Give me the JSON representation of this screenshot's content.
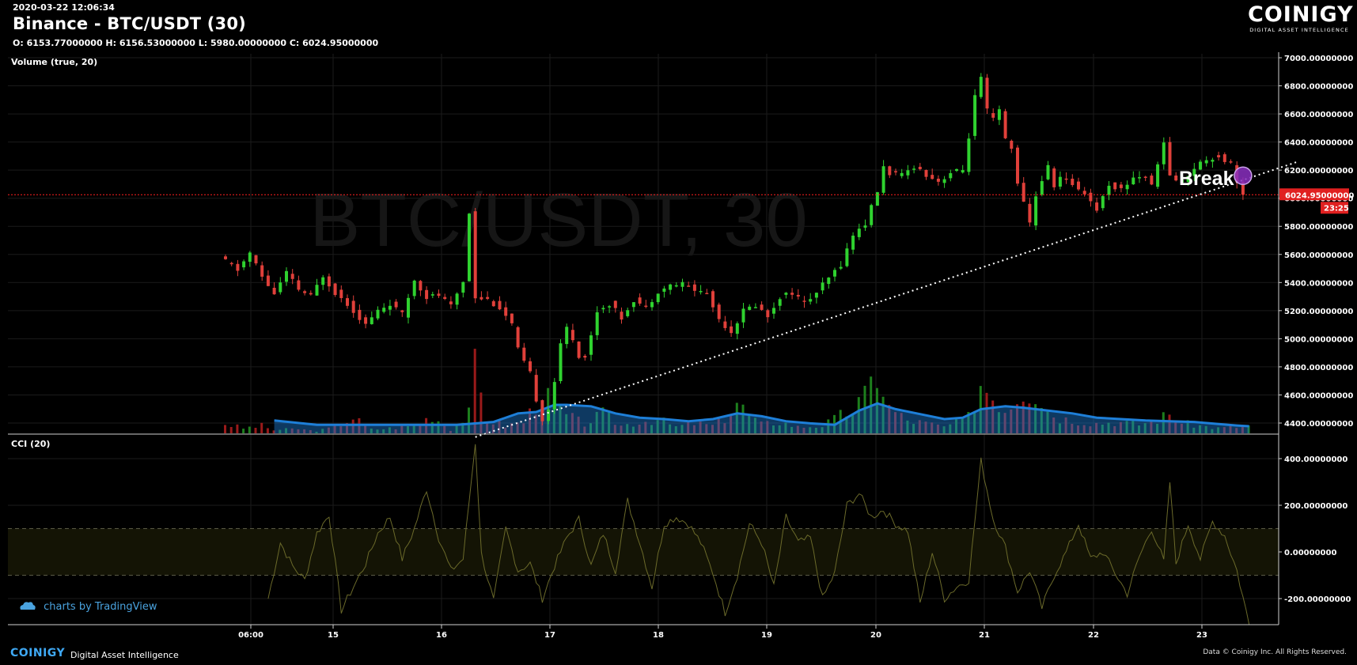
{
  "header": {
    "timestamp": "2020-03-22 12:06:34",
    "title": "Binance - BTC/USDT (30)",
    "ohlc": "O: 6153.77000000 H: 6156.53000000 L: 5980.00000000 C: 6024.95000000"
  },
  "brand": {
    "name": "COINIGY",
    "tagline": "DIGITAL ASSET INTELLIGENCE",
    "footer_name": "COINIGY",
    "footer_tagline": "Digital Asset Intelligence",
    "copyright": "Data © Coinigy Inc.  All Rights Reserved.",
    "tradingview": "charts by TradingView"
  },
  "colors": {
    "up": "#2fd22f",
    "down": "#e0403a",
    "volume_ma": "#1e7fd8",
    "cci_line": "#6b6a2a",
    "price_line": "#ff2020",
    "accent": "#3fa9f5"
  },
  "chart_data": [
    {
      "type": "candlestick",
      "title": "Binance - BTC/USDT (30)",
      "watermark": "BTC/USDT, 30",
      "x_tick_labels": [
        "06:00",
        "15",
        "16",
        "17",
        "18",
        "19",
        "20",
        "21",
        "22",
        "23"
      ],
      "y_tick_labels": [
        "7000.00000000",
        "6800.00000000",
        "6600.00000000",
        "6400.00000000",
        "6200.00000000",
        "6000.00000000",
        "5800.00000000",
        "5600.00000000",
        "5400.00000000",
        "5200.00000000",
        "5000.00000000",
        "4800.00000000",
        "4600.00000000",
        "4400.00000000"
      ],
      "ylim": [
        4300,
        7050
      ],
      "ohlc": {
        "open": 6153.77,
        "high": 6156.53,
        "low": 5980.0,
        "close": 6024.95
      },
      "current_price_label": "6024.95000000",
      "countdown_label": "23:25",
      "price_path": [
        [
          0,
          5580
        ],
        [
          3,
          5490
        ],
        [
          5,
          5610
        ],
        [
          7,
          5440
        ],
        [
          9,
          5320
        ],
        [
          11,
          5470
        ],
        [
          13,
          5350
        ],
        [
          15,
          5300
        ],
        [
          17,
          5450
        ],
        [
          19,
          5330
        ],
        [
          21,
          5250
        ],
        [
          24,
          5100
        ],
        [
          26,
          5200
        ],
        [
          28,
          5250
        ],
        [
          30,
          5170
        ],
        [
          32,
          5420
        ],
        [
          34,
          5300
        ],
        [
          36,
          5310
        ],
        [
          38,
          5230
        ],
        [
          40,
          5410
        ],
        [
          41,
          5900
        ],
        [
          42,
          5300
        ],
        [
          44,
          5280
        ],
        [
          46,
          5220
        ],
        [
          48,
          5100
        ],
        [
          49,
          4920
        ],
        [
          50,
          4830
        ],
        [
          51,
          4750
        ],
        [
          52,
          4570
        ],
        [
          53,
          4430
        ],
        [
          54,
          4500
        ],
        [
          55,
          4700
        ],
        [
          56,
          4950
        ],
        [
          57,
          5080
        ],
        [
          58,
          5000
        ],
        [
          59,
          4880
        ],
        [
          60,
          4870
        ],
        [
          61,
          5020
        ],
        [
          62,
          5200
        ],
        [
          64,
          5250
        ],
        [
          66,
          5150
        ],
        [
          68,
          5280
        ],
        [
          70,
          5220
        ],
        [
          72,
          5340
        ],
        [
          74,
          5380
        ],
        [
          76,
          5390
        ],
        [
          78,
          5350
        ],
        [
          80,
          5320
        ],
        [
          82,
          5140
        ],
        [
          84,
          5050
        ],
        [
          86,
          5200
        ],
        [
          88,
          5240
        ],
        [
          90,
          5160
        ],
        [
          92,
          5300
        ],
        [
          94,
          5330
        ],
        [
          96,
          5250
        ],
        [
          98,
          5330
        ],
        [
          100,
          5430
        ],
        [
          102,
          5530
        ],
        [
          104,
          5740
        ],
        [
          106,
          5820
        ],
        [
          108,
          6050
        ],
        [
          109,
          6220
        ],
        [
          110,
          6180
        ],
        [
          112,
          6160
        ],
        [
          114,
          6230
        ],
        [
          116,
          6170
        ],
        [
          118,
          6120
        ],
        [
          120,
          6180
        ],
        [
          122,
          6200
        ],
        [
          123,
          6440
        ],
        [
          124,
          6720
        ],
        [
          125,
          6850
        ],
        [
          126,
          6620
        ],
        [
          127,
          6560
        ],
        [
          128,
          6620
        ],
        [
          129,
          6420
        ],
        [
          130,
          6350
        ],
        [
          131,
          6120
        ],
        [
          132,
          5960
        ],
        [
          133,
          5820
        ],
        [
          134,
          6020
        ],
        [
          135,
          6130
        ],
        [
          136,
          6220
        ],
        [
          137,
          6090
        ],
        [
          138,
          6150
        ],
        [
          140,
          6100
        ],
        [
          142,
          6040
        ],
        [
          144,
          5920
        ],
        [
          146,
          6100
        ],
        [
          148,
          6060
        ],
        [
          150,
          6150
        ],
        [
          152,
          6160
        ],
        [
          153,
          6080
        ],
        [
          154,
          6260
        ],
        [
          155,
          6380
        ],
        [
          156,
          6170
        ],
        [
          157,
          6130
        ],
        [
          158,
          6120
        ],
        [
          160,
          6220
        ],
        [
          162,
          6280
        ],
        [
          164,
          6300
        ],
        [
          165,
          6270
        ],
        [
          166,
          6250
        ],
        [
          167,
          6130
        ],
        [
          168,
          6020
        ]
      ],
      "volume_path": [
        [
          0,
          15
        ],
        [
          3,
          8
        ],
        [
          6,
          12
        ],
        [
          8,
          5
        ],
        [
          12,
          7
        ],
        [
          15,
          3
        ],
        [
          18,
          10
        ],
        [
          21,
          25
        ],
        [
          24,
          6
        ],
        [
          27,
          8
        ],
        [
          31,
          12
        ],
        [
          34,
          28
        ],
        [
          37,
          6
        ],
        [
          40,
          30
        ],
        [
          41,
          100
        ],
        [
          43,
          22
        ],
        [
          46,
          12
        ],
        [
          49,
          18
        ],
        [
          52,
          60
        ],
        [
          54,
          45
        ],
        [
          56,
          28
        ],
        [
          59,
          15
        ],
        [
          62,
          30
        ],
        [
          65,
          12
        ],
        [
          68,
          18
        ],
        [
          71,
          22
        ],
        [
          74,
          10
        ],
        [
          77,
          16
        ],
        [
          80,
          12
        ],
        [
          82,
          24
        ],
        [
          84,
          50
        ],
        [
          86,
          28
        ],
        [
          88,
          14
        ],
        [
          91,
          18
        ],
        [
          94,
          10
        ],
        [
          98,
          12
        ],
        [
          100,
          22
        ],
        [
          103,
          38
        ],
        [
          105,
          56
        ],
        [
          107,
          98
        ],
        [
          109,
          40
        ],
        [
          112,
          20
        ],
        [
          115,
          16
        ],
        [
          118,
          10
        ],
        [
          122,
          25
        ],
        [
          124,
          80
        ],
        [
          126,
          60
        ],
        [
          128,
          38
        ],
        [
          131,
          72
        ],
        [
          133,
          66
        ],
        [
          135,
          36
        ],
        [
          137,
          24
        ],
        [
          140,
          20
        ],
        [
          143,
          16
        ],
        [
          146,
          18
        ],
        [
          150,
          14
        ],
        [
          153,
          22
        ],
        [
          155,
          30
        ],
        [
          157,
          16
        ],
        [
          160,
          12
        ],
        [
          163,
          8
        ],
        [
          166,
          10
        ],
        [
          168,
          12
        ]
      ],
      "volume_ma_path": [
        [
          8,
          18
        ],
        [
          15,
          12
        ],
        [
          22,
          12
        ],
        [
          30,
          12
        ],
        [
          38,
          12
        ],
        [
          44,
          16
        ],
        [
          48,
          28
        ],
        [
          51,
          30
        ],
        [
          54,
          40
        ],
        [
          56,
          40
        ],
        [
          60,
          38
        ],
        [
          64,
          28
        ],
        [
          68,
          22
        ],
        [
          72,
          20
        ],
        [
          76,
          17
        ],
        [
          80,
          20
        ],
        [
          84,
          28
        ],
        [
          88,
          24
        ],
        [
          92,
          17
        ],
        [
          96,
          14
        ],
        [
          100,
          12
        ],
        [
          104,
          32
        ],
        [
          107,
          42
        ],
        [
          110,
          34
        ],
        [
          114,
          27
        ],
        [
          118,
          20
        ],
        [
          121,
          22
        ],
        [
          124,
          34
        ],
        [
          128,
          38
        ],
        [
          131,
          36
        ],
        [
          135,
          32
        ],
        [
          139,
          28
        ],
        [
          143,
          22
        ],
        [
          147,
          20
        ],
        [
          151,
          18
        ],
        [
          155,
          17
        ],
        [
          159,
          16
        ],
        [
          163,
          13
        ],
        [
          166,
          11
        ],
        [
          168,
          10
        ]
      ],
      "trendline": {
        "from": [
          41,
          4300
        ],
        "to": [
          176,
          6260
        ],
        "style": "dotted",
        "color": "#ffffff"
      },
      "annotation": {
        "text": "Break",
        "at": [
          167,
          6160
        ]
      },
      "legend": "Volume (true, 20)"
    },
    {
      "type": "line",
      "title": "CCI (20)",
      "ylim": [
        -320,
        470
      ],
      "y_tick_labels": [
        "400.00000000",
        "200.00000000",
        "0.00000000",
        "-200.00000000"
      ],
      "bands": [
        -100,
        100
      ],
      "cci_path": [
        [
          7,
          -200
        ],
        [
          9,
          40
        ],
        [
          11,
          -60
        ],
        [
          13,
          -120
        ],
        [
          15,
          80
        ],
        [
          17,
          160
        ],
        [
          19,
          -250
        ],
        [
          21,
          -150
        ],
        [
          23,
          -50
        ],
        [
          25,
          80
        ],
        [
          27,
          150
        ],
        [
          29,
          -30
        ],
        [
          31,
          100
        ],
        [
          33,
          270
        ],
        [
          35,
          60
        ],
        [
          37,
          -80
        ],
        [
          39,
          -30
        ],
        [
          41,
          470
        ],
        [
          42,
          -10
        ],
        [
          44,
          -210
        ],
        [
          46,
          100
        ],
        [
          48,
          -80
        ],
        [
          50,
          -50
        ],
        [
          52,
          -200
        ],
        [
          54,
          -60
        ],
        [
          56,
          60
        ],
        [
          58,
          140
        ],
        [
          60,
          -60
        ],
        [
          62,
          80
        ],
        [
          64,
          -80
        ],
        [
          66,
          220
        ],
        [
          68,
          40
        ],
        [
          70,
          -150
        ],
        [
          72,
          120
        ],
        [
          74,
          150
        ],
        [
          76,
          120
        ],
        [
          78,
          40
        ],
        [
          80,
          -90
        ],
        [
          82,
          -260
        ],
        [
          84,
          -100
        ],
        [
          86,
          120
        ],
        [
          88,
          40
        ],
        [
          90,
          -150
        ],
        [
          92,
          150
        ],
        [
          94,
          40
        ],
        [
          96,
          60
        ],
        [
          98,
          -200
        ],
        [
          100,
          -90
        ],
        [
          102,
          200
        ],
        [
          104,
          250
        ],
        [
          106,
          150
        ],
        [
          108,
          180
        ],
        [
          110,
          120
        ],
        [
          112,
          90
        ],
        [
          114,
          -220
        ],
        [
          116,
          0
        ],
        [
          118,
          -200
        ],
        [
          120,
          -150
        ],
        [
          122,
          -120
        ],
        [
          124,
          390
        ],
        [
          126,
          140
        ],
        [
          128,
          20
        ],
        [
          130,
          -170
        ],
        [
          132,
          -80
        ],
        [
          134,
          -240
        ],
        [
          136,
          -100
        ],
        [
          138,
          0
        ],
        [
          140,
          120
        ],
        [
          142,
          -30
        ],
        [
          144,
          0
        ],
        [
          146,
          -90
        ],
        [
          148,
          -180
        ],
        [
          150,
          -20
        ],
        [
          152,
          100
        ],
        [
          154,
          -40
        ],
        [
          155,
          300
        ],
        [
          156,
          -50
        ],
        [
          158,
          120
        ],
        [
          160,
          -30
        ],
        [
          162,
          130
        ],
        [
          164,
          70
        ],
        [
          166,
          -80
        ],
        [
          168,
          -310
        ]
      ]
    }
  ]
}
